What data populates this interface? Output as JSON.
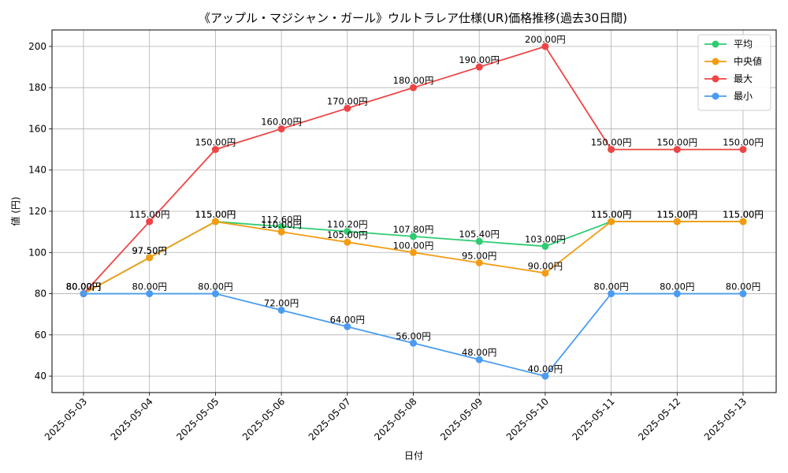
{
  "chart_data": {
    "type": "line",
    "title": "《アップル・マジシャン・ガール》ウルトラレア仕様(UR)価格推移(過去30日間)",
    "xlabel": "日付",
    "ylabel": "値 (円)",
    "categories": [
      "2025-05-03",
      "2025-05-04",
      "2025-05-05",
      "2025-05-06",
      "2025-05-07",
      "2025-05-08",
      "2025-05-09",
      "2025-05-10",
      "2025-05-11",
      "2025-05-12",
      "2025-05-13"
    ],
    "ylim": [
      32,
      208
    ],
    "yticks": [
      40,
      60,
      80,
      100,
      120,
      140,
      160,
      180,
      200
    ],
    "grid": true,
    "legend_position": "top-right",
    "value_suffix": "円",
    "series": [
      {
        "name": "平均",
        "color": "#2ecc71",
        "values": [
          80.0,
          97.5,
          115.0,
          112.6,
          110.2,
          107.8,
          105.4,
          103.0,
          115.0,
          115.0,
          115.0
        ]
      },
      {
        "name": "中央値",
        "color": "#f39c12",
        "values": [
          80.0,
          97.5,
          115.0,
          110.0,
          105.0,
          100.0,
          95.0,
          90.0,
          115.0,
          115.0,
          115.0
        ]
      },
      {
        "name": "最大",
        "color": "#ef4444",
        "values": [
          80.0,
          115.0,
          150.0,
          160.0,
          170.0,
          180.0,
          190.0,
          200.0,
          150.0,
          150.0,
          150.0
        ]
      },
      {
        "name": "最小",
        "color": "#4b9cf0",
        "values": [
          80.0,
          80.0,
          80.0,
          72.0,
          64.0,
          56.0,
          48.0,
          40.0,
          80.0,
          80.0,
          80.0
        ]
      }
    ]
  }
}
